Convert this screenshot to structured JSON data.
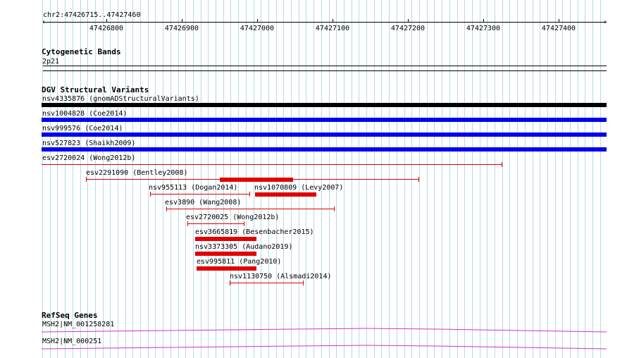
{
  "ruler": {
    "region": "chr2:47426715..47427460",
    "ticks": [
      "47426800",
      "47426900",
      "47427000",
      "47427100",
      "47427200",
      "47427300",
      "47427400"
    ]
  },
  "tracks": {
    "cytoband": {
      "title": "Cytogenetic Bands",
      "band": "2p21"
    },
    "dgv": {
      "title": "DGV Structural Variants",
      "features": [
        {
          "label": "nsv4335876 (gnomADStructuralVariants)",
          "color": "#000000"
        },
        {
          "label": "nsv1004828 (Coe2014)",
          "color": "#0000ee"
        },
        {
          "label": "nsv999576 (Coe2014)",
          "color": "#0000ee"
        },
        {
          "label": "nsv527823 (Shaikh2009)",
          "color": "#0000ee"
        },
        {
          "label": "esv2720024 (Wong2012b)",
          "color": "#e00000"
        },
        {
          "label": "esv2291090 (Bentley2008)",
          "color": "#e00000"
        },
        {
          "label": "nsv955113 (Dogan2014)",
          "color": "#e00000"
        },
        {
          "label": "nsv1070809 (Levy2007)",
          "color": "#e00000"
        },
        {
          "label": "esv3890 (Wang2008)",
          "color": "#e00000"
        },
        {
          "label": "esv2720025 (Wong2012b)",
          "color": "#e00000"
        },
        {
          "label": "esv3665819 (Besenbacher2015)",
          "color": "#e00000"
        },
        {
          "label": "nsv3373305 (Audano2019)",
          "color": "#e00000"
        },
        {
          "label": "esv995811 (Pang2010)",
          "color": "#e00000"
        },
        {
          "label": "nsv1130750 (Alsmadi2014)",
          "color": "#e00000"
        }
      ]
    },
    "refseq": {
      "title": "RefSeq Genes",
      "genes": [
        {
          "label": "MSH2|NM_001258281",
          "color": "#cc33cc"
        },
        {
          "label": "MSH2|NM_000251",
          "color": "#cc33cc"
        }
      ]
    }
  }
}
